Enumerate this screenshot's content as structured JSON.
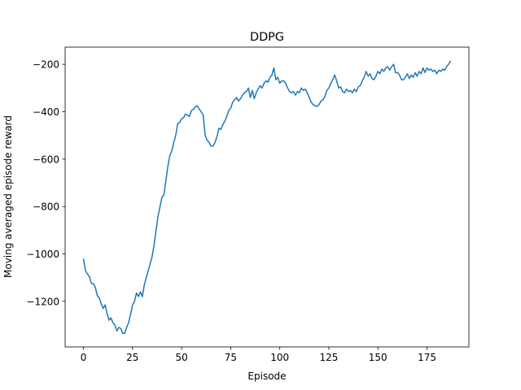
{
  "chart_data": {
    "type": "line",
    "title": "DDPG",
    "xlabel": "Episode",
    "ylabel": "Moving averaged episode reward",
    "color": "#1f77b4",
    "grid": false,
    "x": [
      0,
      1,
      2,
      3,
      4,
      5,
      6,
      7,
      8,
      9,
      10,
      11,
      12,
      13,
      14,
      15,
      16,
      17,
      18,
      19,
      20,
      21,
      22,
      23,
      24,
      25,
      26,
      27,
      28,
      29,
      30,
      31,
      32,
      33,
      34,
      35,
      36,
      37,
      38,
      39,
      40,
      41,
      42,
      43,
      44,
      45,
      46,
      47,
      48,
      49,
      50,
      51,
      52,
      53,
      54,
      55,
      56,
      57,
      58,
      59,
      60,
      61,
      62,
      63,
      64,
      65,
      66,
      67,
      68,
      69,
      70,
      71,
      72,
      73,
      74,
      75,
      76,
      77,
      78,
      79,
      80,
      81,
      82,
      83,
      84,
      85,
      86,
      87,
      88,
      89,
      90,
      91,
      92,
      93,
      94,
      95,
      96,
      97,
      98,
      99,
      100,
      101,
      102,
      103,
      104,
      105,
      106,
      107,
      108,
      109,
      110,
      111,
      112,
      113,
      114,
      115,
      116,
      117,
      118,
      119,
      120,
      121,
      122,
      123,
      124,
      125,
      126,
      127,
      128,
      129,
      130,
      131,
      132,
      133,
      134,
      135,
      136,
      137,
      138,
      139,
      140,
      141,
      142,
      143,
      144,
      145,
      146,
      147,
      148,
      149,
      150,
      151,
      152,
      153,
      154,
      155,
      156,
      157,
      158,
      159,
      160,
      161,
      162,
      163,
      164,
      165,
      166,
      167,
      168,
      169,
      170,
      171,
      172,
      173,
      174,
      175,
      176,
      177,
      178,
      179,
      180,
      181,
      182,
      183,
      184,
      185,
      186,
      187
    ],
    "values": [
      -1020,
      -1070,
      -1085,
      -1095,
      -1125,
      -1125,
      -1140,
      -1175,
      -1185,
      -1210,
      -1230,
      -1215,
      -1250,
      -1280,
      -1270,
      -1290,
      -1300,
      -1325,
      -1310,
      -1315,
      -1335,
      -1335,
      -1310,
      -1290,
      -1255,
      -1215,
      -1200,
      -1165,
      -1180,
      -1160,
      -1180,
      -1130,
      -1100,
      -1070,
      -1040,
      -1010,
      -960,
      -900,
      -840,
      -800,
      -760,
      -750,
      -690,
      -630,
      -585,
      -565,
      -530,
      -500,
      -450,
      -445,
      -430,
      -425,
      -410,
      -415,
      -420,
      -395,
      -390,
      -380,
      -375,
      -390,
      -400,
      -415,
      -500,
      -520,
      -530,
      -545,
      -545,
      -530,
      -505,
      -470,
      -475,
      -455,
      -440,
      -420,
      -395,
      -385,
      -360,
      -350,
      -340,
      -355,
      -345,
      -330,
      -320,
      -315,
      -300,
      -340,
      -310,
      -345,
      -320,
      -305,
      -290,
      -300,
      -280,
      -270,
      -275,
      -255,
      -245,
      -215,
      -265,
      -255,
      -280,
      -270,
      -270,
      -280,
      -300,
      -315,
      -320,
      -315,
      -330,
      -315,
      -320,
      -300,
      -310,
      -305,
      -320,
      -340,
      -360,
      -370,
      -375,
      -378,
      -370,
      -355,
      -350,
      -335,
      -310,
      -300,
      -280,
      -265,
      -245,
      -270,
      -300,
      -295,
      -315,
      -320,
      -305,
      -315,
      -310,
      -320,
      -305,
      -315,
      -295,
      -290,
      -270,
      -255,
      -230,
      -250,
      -240,
      -260,
      -265,
      -250,
      -230,
      -240,
      -220,
      -230,
      -215,
      -210,
      -225,
      -210,
      -200,
      -235,
      -235,
      -245,
      -265,
      -265,
      -255,
      -240,
      -260,
      -245,
      -255,
      -235,
      -250,
      -230,
      -240,
      -215,
      -235,
      -215,
      -225,
      -220,
      -230,
      -225,
      -240,
      -225,
      -230,
      -220,
      -225,
      -210,
      -200,
      -185
    ],
    "xlim": [
      -9.35,
      196.35
    ],
    "ylim": [
      -1392.5,
      -127.5
    ],
    "xticks": [
      0,
      25,
      50,
      75,
      100,
      125,
      150,
      175
    ],
    "yticks": [
      {
        "value": -1200,
        "label": "−1200"
      },
      {
        "value": -1000,
        "label": "−1000"
      },
      {
        "value": -800,
        "label": "−800"
      },
      {
        "value": -600,
        "label": "−600"
      },
      {
        "value": -400,
        "label": "−400"
      },
      {
        "value": -200,
        "label": "−200"
      }
    ]
  }
}
